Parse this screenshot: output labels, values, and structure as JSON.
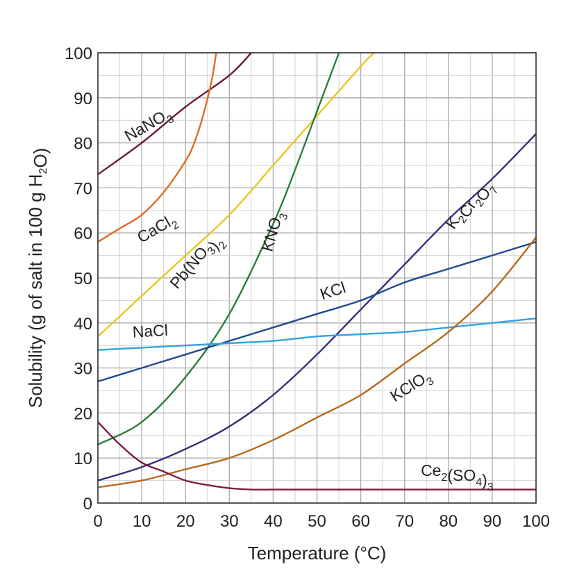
{
  "chart_data": {
    "type": "line",
    "xlabel": "Temperature (°C)",
    "ylabel": "Solubility (g of salt in 100 g H2O)",
    "xlim": [
      0,
      100
    ],
    "ylim": [
      0,
      100
    ],
    "x_ticks": [
      "0",
      "10",
      "20",
      "30",
      "40",
      "50",
      "60",
      "70",
      "80",
      "90",
      "100"
    ],
    "y_ticks": [
      "0",
      "10",
      "20",
      "30",
      "40",
      "50",
      "60",
      "70",
      "80",
      "90",
      "100"
    ],
    "grid": true,
    "series": [
      {
        "name": "NaNO3",
        "color": "#6b1a2e",
        "label_angle": -30,
        "points": [
          [
            0,
            73
          ],
          [
            10,
            80
          ],
          [
            20,
            88
          ],
          [
            30,
            95
          ],
          [
            35,
            100
          ]
        ]
      },
      {
        "name": "CaCl2",
        "color": "#e06a22",
        "label_angle": -30,
        "points": [
          [
            0,
            58
          ],
          [
            5,
            61
          ],
          [
            10,
            64
          ],
          [
            15,
            69
          ],
          [
            20,
            76
          ],
          [
            22,
            80
          ],
          [
            24,
            86
          ],
          [
            26,
            94
          ],
          [
            27,
            100
          ]
        ]
      },
      {
        "name": "Pb(NO3)2",
        "color": "#e6c820",
        "label_angle": -50,
        "points": [
          [
            0,
            37
          ],
          [
            10,
            46
          ],
          [
            20,
            55
          ],
          [
            30,
            64
          ],
          [
            40,
            75
          ],
          [
            50,
            86
          ],
          [
            60,
            97
          ],
          [
            63,
            100
          ]
        ]
      },
      {
        "name": "KNO3",
        "color": "#2a7d3a",
        "label_angle": -74,
        "points": [
          [
            0,
            13
          ],
          [
            10,
            18
          ],
          [
            20,
            28
          ],
          [
            30,
            42
          ],
          [
            40,
            62
          ],
          [
            45,
            74
          ],
          [
            50,
            87
          ],
          [
            55,
            100
          ]
        ]
      },
      {
        "name": "K2Cr2O7",
        "color": "#3d2b7a",
        "label_angle": -56,
        "points": [
          [
            0,
            5
          ],
          [
            10,
            8
          ],
          [
            20,
            12
          ],
          [
            30,
            17
          ],
          [
            40,
            24
          ],
          [
            50,
            33
          ],
          [
            60,
            43
          ],
          [
            70,
            53
          ],
          [
            80,
            63
          ],
          [
            90,
            72
          ],
          [
            100,
            82
          ]
        ]
      },
      {
        "name": "KCl",
        "color": "#1f4b8f",
        "label_angle": -18,
        "points": [
          [
            0,
            27
          ],
          [
            10,
            30
          ],
          [
            20,
            33
          ],
          [
            30,
            36
          ],
          [
            40,
            39
          ],
          [
            50,
            42
          ],
          [
            60,
            45
          ],
          [
            70,
            49
          ],
          [
            80,
            52
          ],
          [
            90,
            55
          ],
          [
            100,
            58
          ]
        ]
      },
      {
        "name": "NaCl",
        "color": "#35a1e0",
        "label_angle": -3,
        "points": [
          [
            0,
            34
          ],
          [
            10,
            34.5
          ],
          [
            20,
            35
          ],
          [
            30,
            35.5
          ],
          [
            40,
            36
          ],
          [
            50,
            37
          ],
          [
            60,
            37.5
          ],
          [
            70,
            38
          ],
          [
            80,
            39
          ],
          [
            90,
            40
          ],
          [
            100,
            41
          ]
        ]
      },
      {
        "name": "KClO3",
        "color": "#b86a1c",
        "label_angle": -32,
        "points": [
          [
            0,
            3.5
          ],
          [
            10,
            5
          ],
          [
            20,
            7.5
          ],
          [
            30,
            10
          ],
          [
            40,
            14
          ],
          [
            50,
            19
          ],
          [
            60,
            24
          ],
          [
            70,
            31
          ],
          [
            80,
            38
          ],
          [
            90,
            47
          ],
          [
            100,
            59
          ]
        ]
      },
      {
        "name": "Ce2(SO4)3",
        "color": "#7a1f40",
        "label_angle": 0,
        "points": [
          [
            0,
            18
          ],
          [
            5,
            13
          ],
          [
            10,
            9
          ],
          [
            15,
            7
          ],
          [
            20,
            5
          ],
          [
            25,
            4
          ],
          [
            30,
            3.3
          ],
          [
            35,
            3
          ],
          [
            40,
            3
          ],
          [
            50,
            3
          ],
          [
            60,
            3
          ],
          [
            70,
            3
          ],
          [
            80,
            3
          ],
          [
            90,
            3
          ],
          [
            100,
            3
          ]
        ]
      }
    ],
    "annotations": [
      {
        "series": "NaNO3",
        "x": 12,
        "y": 83
      },
      {
        "series": "CaCl2",
        "x": 14,
        "y": 60
      },
      {
        "series": "Pb(NO3)2",
        "x": 23,
        "y": 53
      },
      {
        "series": "KNO3",
        "x": 41,
        "y": 60
      },
      {
        "series": "K2Cr2O7",
        "x": 85,
        "y": 66
      },
      {
        "series": "KCl",
        "x": 54,
        "y": 46
      },
      {
        "series": "NaCl",
        "x": 12,
        "y": 37
      },
      {
        "series": "KClO3",
        "x": 72,
        "y": 25
      },
      {
        "series": "Ce2(SO4)3",
        "x": 82,
        "y": 6
      }
    ]
  }
}
